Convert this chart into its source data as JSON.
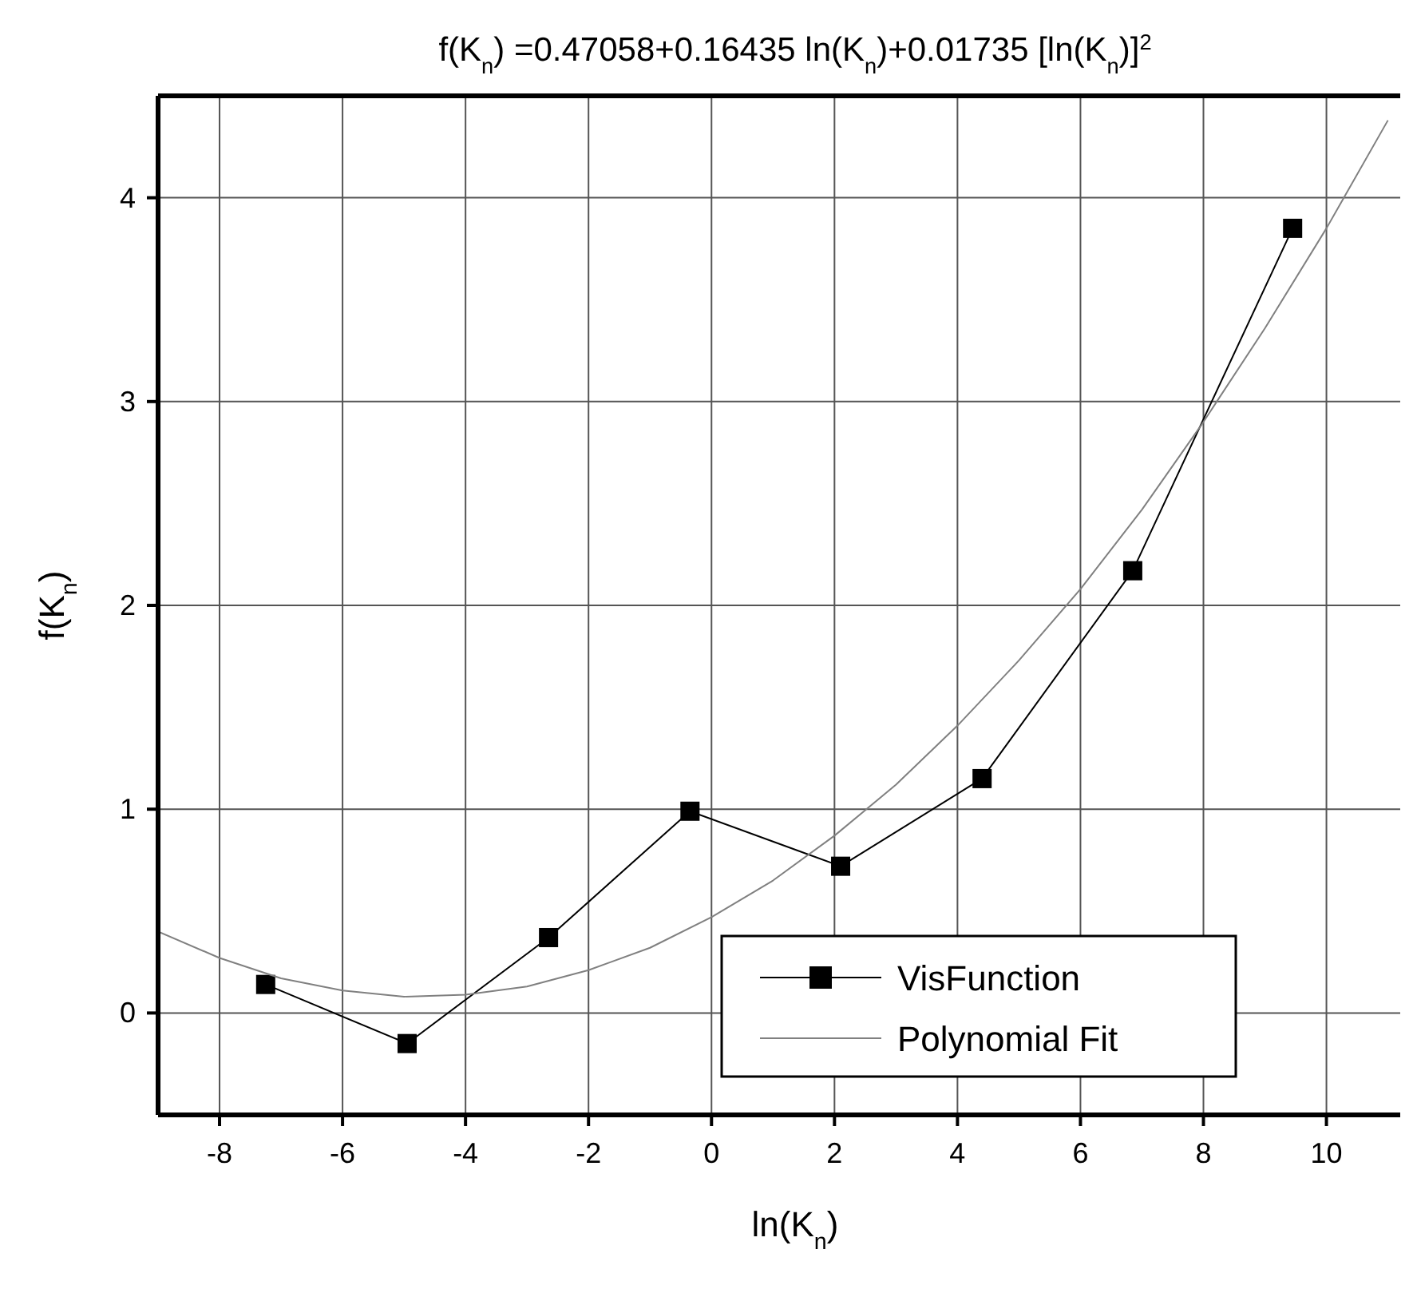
{
  "chart_data": {
    "type": "line",
    "title": "f(K$_{n}$) =0.47058+0.16435 ln(K$_{n}$)+0.01735 [ln(K$_{n}$)]$^{2}$",
    "xlabel": "ln(K$_{n}$)",
    "ylabel": "f(K$_{n}$)",
    "xlim": [
      -9,
      11.2
    ],
    "ylim": [
      -0.5,
      4.5
    ],
    "xticks": [
      -8,
      -6,
      -4,
      -2,
      0,
      2,
      4,
      6,
      8,
      10
    ],
    "yticks": [
      0,
      1,
      2,
      3,
      4
    ],
    "grid": true,
    "legend": "bottom right",
    "series": [
      {
        "name": "VisFunction",
        "color": "#000000",
        "marker": "square",
        "x": [
          -7.25,
          -4.95,
          -2.65,
          -0.35,
          2.1,
          4.4,
          6.85,
          9.45
        ],
        "values": [
          0.14,
          -0.15,
          0.37,
          0.99,
          0.72,
          1.15,
          2.17,
          3.85
        ]
      },
      {
        "name": "Polynomial Fit",
        "color": "#808080",
        "marker": "none",
        "x": [
          -9,
          -8,
          -7,
          -6,
          -5,
          -4,
          -3,
          -2,
          -1,
          0,
          1,
          2,
          3,
          4,
          5,
          6,
          7,
          8,
          9,
          10,
          11
        ],
        "values": [
          0.4,
          0.27,
          0.17,
          0.11,
          0.08,
          0.09,
          0.13,
          0.21,
          0.32,
          0.47,
          0.65,
          0.87,
          1.12,
          1.41,
          1.73,
          2.08,
          2.47,
          2.9,
          3.36,
          3.85,
          4.38
        ]
      }
    ]
  }
}
